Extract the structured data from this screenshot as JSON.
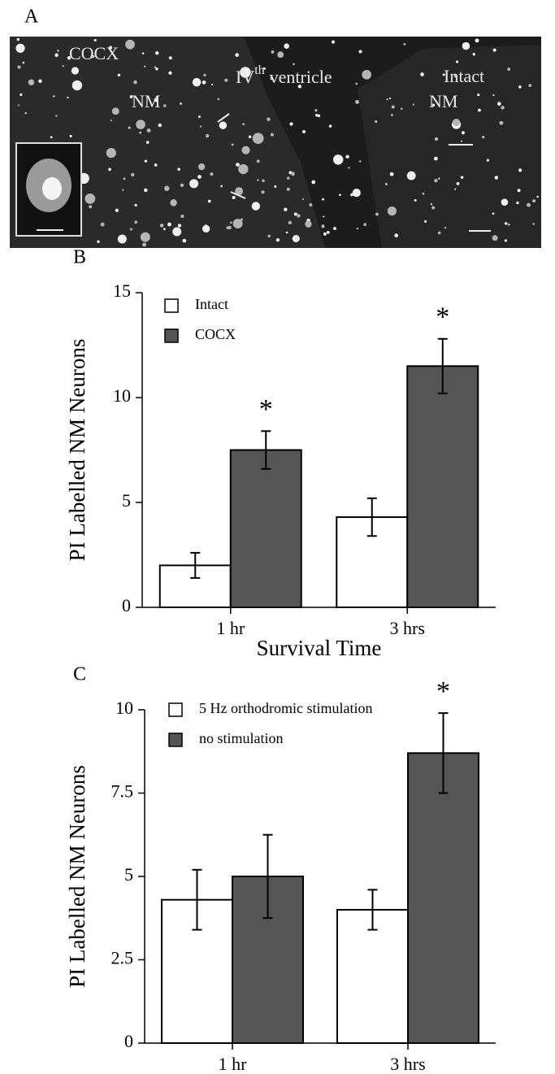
{
  "panel_a": {
    "label": "A",
    "left_label": "COCX",
    "left_nm": "NM",
    "ventricle": {
      "base": "IV",
      "sup": "th",
      "rest": "ventricle"
    },
    "right_label": "Intact",
    "right_nm": "NM"
  },
  "chart_data": [
    {
      "type": "bar",
      "panel_label": "B",
      "ylabel": "PI Labelled NM Neurons",
      "xlabel": "Survival Time",
      "categories": [
        "1 hr",
        "3 hrs"
      ],
      "series": [
        {
          "name": "Intact",
          "color": "#ffffff",
          "values": [
            2.0,
            4.3
          ],
          "errors": [
            0.6,
            0.9
          ]
        },
        {
          "name": "COCX",
          "color": "#555555",
          "values": [
            7.5,
            11.5
          ],
          "errors": [
            0.9,
            1.3
          ],
          "significance": [
            "*",
            "*"
          ]
        }
      ],
      "ylim": [
        0,
        15
      ],
      "yticks": [
        0,
        5,
        10,
        15
      ]
    },
    {
      "type": "bar",
      "panel_label": "C",
      "ylabel": "PI Labelled NM Neurons",
      "categories": [
        "1 hr",
        "3 hrs"
      ],
      "series": [
        {
          "name": "5 Hz orthodromic stimulation",
          "color": "#ffffff",
          "values": [
            4.3,
            4.0
          ],
          "errors": [
            0.9,
            0.6
          ]
        },
        {
          "name": "no stimulation",
          "color": "#555555",
          "values": [
            5.0,
            8.7
          ],
          "errors": [
            1.25,
            1.2
          ],
          "significance": [
            null,
            "*"
          ]
        }
      ],
      "ylim": [
        0,
        10
      ],
      "yticks": [
        0,
        2.5,
        5,
        7.5,
        10
      ]
    }
  ]
}
